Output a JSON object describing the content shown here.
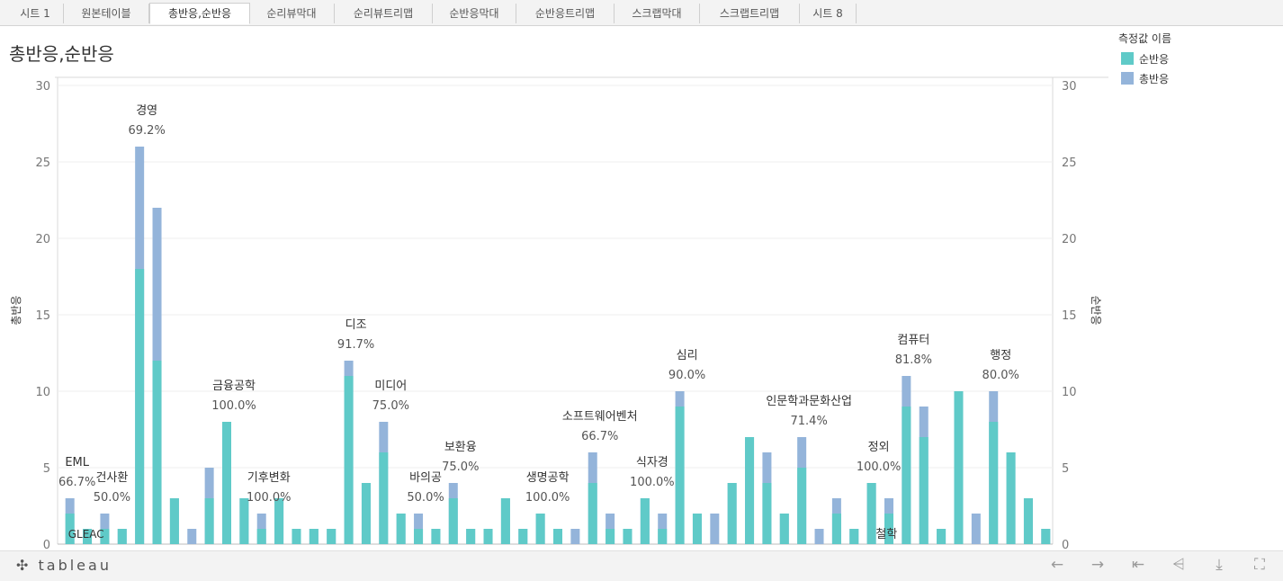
{
  "tabs": [
    {
      "label": "시트 1",
      "active": false
    },
    {
      "label": "원본테이블",
      "active": false
    },
    {
      "label": "총반응,순반응",
      "active": true
    },
    {
      "label": "순리뷰막대",
      "active": false
    },
    {
      "label": "순리뷰트리맵",
      "active": false
    },
    {
      "label": "순반응막대",
      "active": false
    },
    {
      "label": "순반응트리맵",
      "active": false
    },
    {
      "label": "스크랩막대",
      "active": false
    },
    {
      "label": "스크랩트리맵",
      "active": false
    },
    {
      "label": "시트 8",
      "active": false
    }
  ],
  "title": "총반응,순반응",
  "legend": {
    "title": "측정값 이름",
    "items": [
      {
        "label": "순반응",
        "color": "#5fcac8"
      },
      {
        "label": "총반응",
        "color": "#94b4da"
      }
    ]
  },
  "footer": {
    "logo": "tableau",
    "controls": [
      "undo-icon",
      "redo-icon",
      "revert-icon",
      "share-icon",
      "download-icon",
      "fullscreen-icon"
    ]
  },
  "chart_data": {
    "type": "bar",
    "title": "총반응,순반응",
    "ylabel": "총반응",
    "y2label": "순반응",
    "ylim": [
      0,
      30
    ],
    "yticks": [
      0,
      5,
      10,
      15,
      20,
      25,
      30
    ],
    "grid": true,
    "colors": {
      "순반응": "#5fcac8",
      "총반응": "#94b4da"
    },
    "bars": [
      {
        "total": 3,
        "net": 2
      },
      {
        "total": 1,
        "net": 1
      },
      {
        "total": 2,
        "net": 1
      },
      {
        "total": 1,
        "net": 1
      },
      {
        "total": 26,
        "net": 18
      },
      {
        "total": 22,
        "net": 12
      },
      {
        "total": 3,
        "net": 3
      },
      {
        "total": 1,
        "net": 0
      },
      {
        "total": 5,
        "net": 3
      },
      {
        "total": 8,
        "net": 8
      },
      {
        "total": 3,
        "net": 3
      },
      {
        "total": 2,
        "net": 1
      },
      {
        "total": 3,
        "net": 3
      },
      {
        "total": 1,
        "net": 1
      },
      {
        "total": 1,
        "net": 1
      },
      {
        "total": 1,
        "net": 1
      },
      {
        "total": 12,
        "net": 11
      },
      {
        "total": 4,
        "net": 4
      },
      {
        "total": 8,
        "net": 6
      },
      {
        "total": 2,
        "net": 2
      },
      {
        "total": 2,
        "net": 1
      },
      {
        "total": 1,
        "net": 1
      },
      {
        "total": 4,
        "net": 3
      },
      {
        "total": 1,
        "net": 1
      },
      {
        "total": 1,
        "net": 1
      },
      {
        "total": 3,
        "net": 3
      },
      {
        "total": 1,
        "net": 1
      },
      {
        "total": 2,
        "net": 2
      },
      {
        "total": 1,
        "net": 1
      },
      {
        "total": 1,
        "net": 0
      },
      {
        "total": 6,
        "net": 4
      },
      {
        "total": 2,
        "net": 1
      },
      {
        "total": 1,
        "net": 1
      },
      {
        "total": 3,
        "net": 3
      },
      {
        "total": 2,
        "net": 1
      },
      {
        "total": 10,
        "net": 9
      },
      {
        "total": 2,
        "net": 2
      },
      {
        "total": 2,
        "net": 0
      },
      {
        "total": 4,
        "net": 4
      },
      {
        "total": 7,
        "net": 7
      },
      {
        "total": 6,
        "net": 4
      },
      {
        "total": 2,
        "net": 2
      },
      {
        "total": 7,
        "net": 5
      },
      {
        "total": 1,
        "net": 0
      },
      {
        "total": 3,
        "net": 2
      },
      {
        "total": 1,
        "net": 1
      },
      {
        "total": 4,
        "net": 4
      },
      {
        "total": 3,
        "net": 2
      },
      {
        "total": 11,
        "net": 9
      },
      {
        "total": 9,
        "net": 7
      },
      {
        "total": 1,
        "net": 1
      },
      {
        "total": 10,
        "net": 10
      },
      {
        "total": 2,
        "net": 0
      },
      {
        "total": 10,
        "net": 8
      },
      {
        "total": 6,
        "net": 6
      },
      {
        "total": 3,
        "net": 3
      },
      {
        "total": 1,
        "net": 1
      }
    ],
    "annotations": [
      {
        "name": "EML",
        "pct": "66.7%",
        "bar": 0
      },
      {
        "name": "GLEAC",
        "pct": "",
        "bar": 0
      },
      {
        "name": "건사환",
        "pct": "50.0%",
        "bar": 2
      },
      {
        "name": "경영",
        "pct": "69.2%",
        "bar": 4
      },
      {
        "name": "금융공학",
        "pct": "100.0%",
        "bar": 9
      },
      {
        "name": "기후변화",
        "pct": "100.0%",
        "bar": 11
      },
      {
        "name": "디조",
        "pct": "91.7%",
        "bar": 16
      },
      {
        "name": "미디어",
        "pct": "75.0%",
        "bar": 18
      },
      {
        "name": "바의공",
        "pct": "50.0%",
        "bar": 20
      },
      {
        "name": "보환융",
        "pct": "75.0%",
        "bar": 22
      },
      {
        "name": "생명공학",
        "pct": "100.0%",
        "bar": 27
      },
      {
        "name": "소프트웨어벤처",
        "pct": "66.7%",
        "bar": 30
      },
      {
        "name": "식자경",
        "pct": "100.0%",
        "bar": 33
      },
      {
        "name": "심리",
        "pct": "90.0%",
        "bar": 35
      },
      {
        "name": "인문학과문화산업",
        "pct": "71.4%",
        "bar": 42
      },
      {
        "name": "정외",
        "pct": "100.0%",
        "bar": 46
      },
      {
        "name": "철학",
        "pct": "",
        "bar": 48
      },
      {
        "name": "컴퓨터",
        "pct": "81.8%",
        "bar": 48
      },
      {
        "name": "행정",
        "pct": "80.0%",
        "bar": 53
      }
    ]
  }
}
